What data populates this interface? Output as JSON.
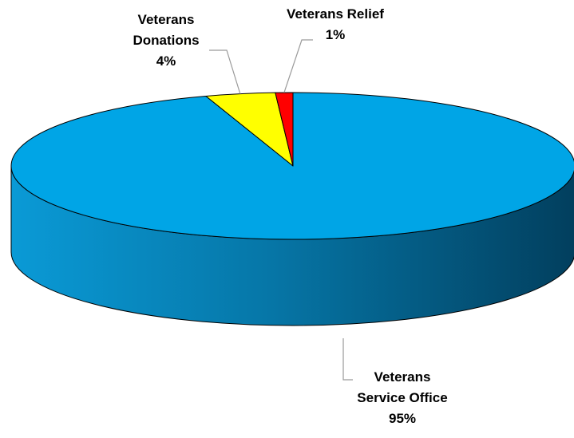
{
  "chart_data": {
    "type": "pie",
    "style": "3d",
    "slices": [
      {
        "label_line1": "Veterans",
        "label_line2": "Service Office",
        "pct_label": "95%",
        "value": 95,
        "color": "#00A5E6"
      },
      {
        "label_line1": "Veterans",
        "label_line2": "Donations",
        "pct_label": "4%",
        "value": 4,
        "color": "#FFFF00"
      },
      {
        "label_line1": "Veterans Relief",
        "label_line2": "",
        "pct_label": "1%",
        "value": 1,
        "color": "#FF0000"
      }
    ],
    "legend": "none",
    "labels": "outside with leader lines"
  }
}
